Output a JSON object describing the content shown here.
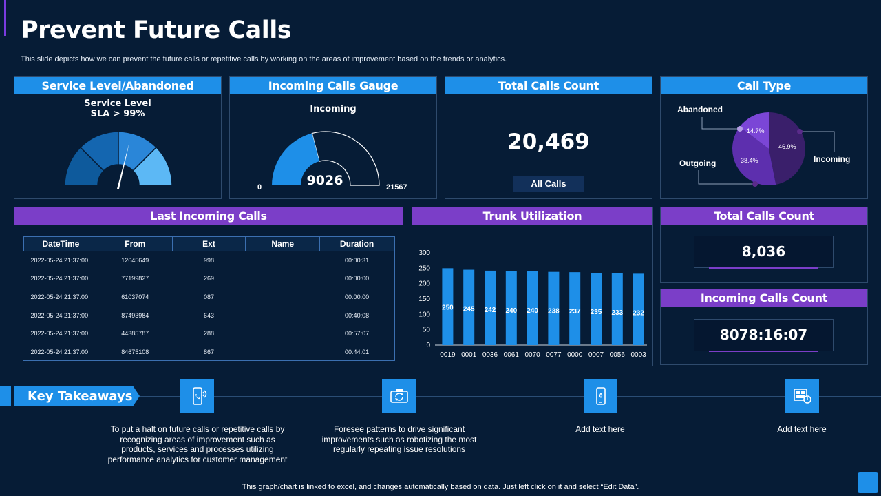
{
  "header": {
    "title": "Prevent Future Calls",
    "subtitle": "This slide depicts how we can prevent the future calls or repetitive calls by working on the areas of improvement based on the trends or analytics."
  },
  "service_level": {
    "heading": "Service Level/Abandoned",
    "label_line1": "Service Level",
    "label_line2": "SLA > 99%"
  },
  "incoming_gauge": {
    "heading": "Incoming Calls Gauge",
    "label": "Incoming",
    "value": "9026",
    "min": "0",
    "max": "21567",
    "fraction": 0.4185
  },
  "total_calls": {
    "heading": "Total Calls Count",
    "value": "20,469",
    "caption": "All Calls"
  },
  "call_type": {
    "heading": "Call Type",
    "slices": [
      {
        "name": "Incoming",
        "label": "46.9%",
        "value": 46.9,
        "color": "#3a1f6b"
      },
      {
        "name": "Outgoing",
        "label": "38.4%",
        "value": 38.4,
        "color": "#5d2fae"
      },
      {
        "name": "Abandoned",
        "label": "14.7%",
        "value": 14.7,
        "color": "#7b46d6"
      }
    ]
  },
  "last_calls": {
    "heading": "Last Incoming Calls",
    "columns": [
      "DateTime",
      "From",
      "Ext",
      "Name",
      "Duration"
    ],
    "rows": [
      [
        "2022-05-24  21:37:00",
        "12645649",
        "998",
        "",
        "00:00:31"
      ],
      [
        "2022-05-24  21:37:00",
        "77199827",
        "269",
        "",
        "00:00:00"
      ],
      [
        "2022-05-24  21:37:00",
        "61037074",
        "087",
        "",
        "00:00:00"
      ],
      [
        "2022-05-24  21:37:00",
        "87493984",
        "643",
        "",
        "00:40:08"
      ],
      [
        "2022-05-24  21:37:00",
        "44385787",
        "288",
        "",
        "00:57:07"
      ],
      [
        "2022-05-24  21:37:00",
        "84675108",
        "867",
        "",
        "00:44:01"
      ]
    ]
  },
  "chart_data": {
    "type": "bar",
    "title": "Trunk Utilization",
    "categories": [
      "0019",
      "0001",
      "0036",
      "0061",
      "0070",
      "0077",
      "0000",
      "0007",
      "0056",
      "0003"
    ],
    "values": [
      250,
      245,
      242,
      240,
      240,
      238,
      237,
      235,
      233,
      232
    ],
    "yticks": [
      "0",
      "50",
      "100",
      "150",
      "200",
      "250",
      "300"
    ],
    "ylim": [
      0,
      300
    ],
    "bar_color": "#1e8fe8"
  },
  "total_calls_2": {
    "heading": "Total Calls Count",
    "value": "8,036"
  },
  "incoming_count": {
    "heading": "Incoming Calls Count",
    "value": "8078:16:07"
  },
  "takeaways": {
    "label": "Key Takeaways",
    "items": [
      {
        "icon": "phone-icon",
        "text": "To put a halt on future calls or repetitive calls by recognizing areas of improvement such as products, services and processes utilizing performance analytics for customer management"
      },
      {
        "icon": "camera-rotate-icon",
        "text": "Foresee patterns to drive significant improvements such as  robotizing the most regularly repeating issue resolutions"
      },
      {
        "icon": "mobile-icon",
        "text": "Add text here"
      },
      {
        "icon": "dashboard-icon",
        "text": "Add text here"
      }
    ]
  },
  "footer": {
    "note": "This graph/chart is linked to excel,  and changes automatically based on data. Just left click on it and select “Edit Data”."
  }
}
